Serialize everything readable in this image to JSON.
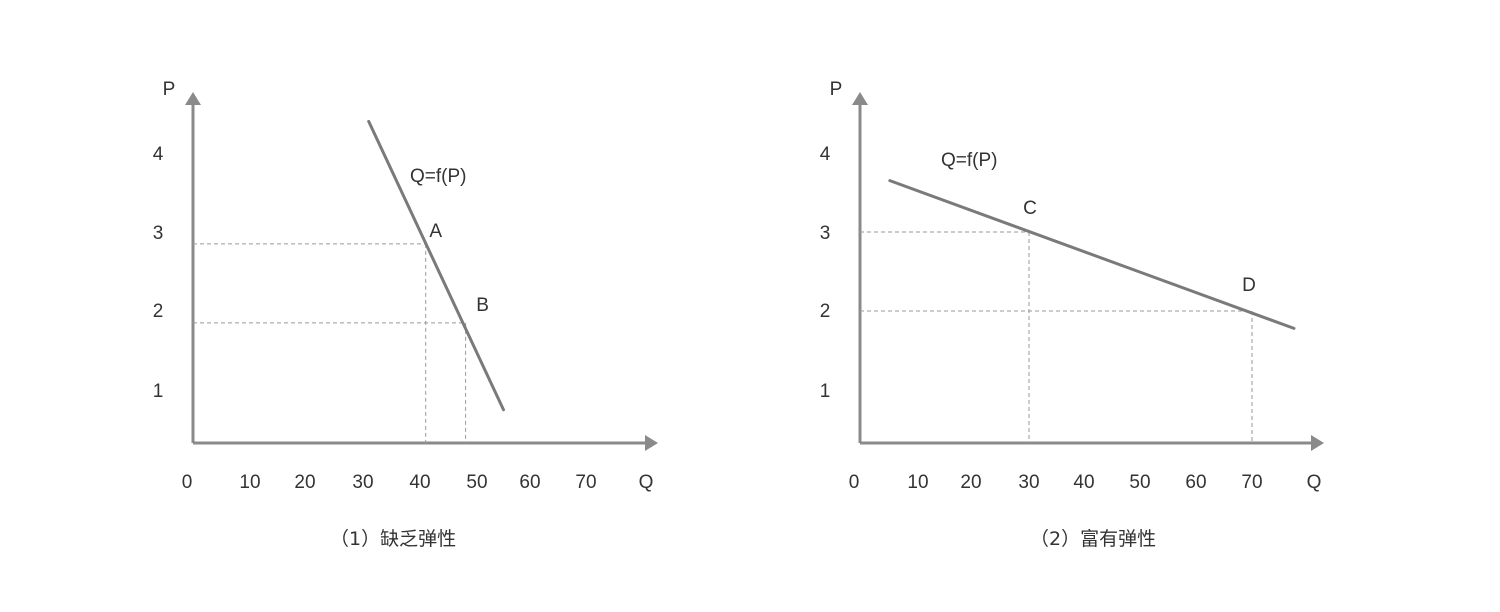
{
  "figure": {
    "captions": [
      "（1）缺乏弹性",
      "（2）富有弹性"
    ]
  },
  "colors": {
    "axis": "#8a8a8a",
    "curve": "#7a7a7a",
    "guide": "#9a9a9a",
    "text": "#333333"
  },
  "chart_data": [
    {
      "type": "line",
      "title": "",
      "xlabel": "Q",
      "ylabel": "P",
      "x_ticks": [
        "0",
        "10",
        "20",
        "30",
        "40",
        "50",
        "60",
        "70"
      ],
      "y_ticks": [
        "1",
        "2",
        "3",
        "4"
      ],
      "xlim": [
        0,
        80
      ],
      "ylim": [
        0.3,
        4.8
      ],
      "curve_label": "Q=f(P)",
      "series": [
        {
          "name": "",
          "points": [
            {
              "x": 31,
              "y": 4.4
            },
            {
              "x": 55,
              "y": 0.75
            }
          ]
        }
      ],
      "annotated_points": [
        {
          "label": "A",
          "x": 41,
          "y": 2.85
        },
        {
          "label": "B",
          "x": 48,
          "y": 1.85
        }
      ],
      "grid": false,
      "caption": "（1）缺乏弹性"
    },
    {
      "type": "line",
      "title": "",
      "xlabel": "Q",
      "ylabel": "P",
      "x_ticks": [
        "0",
        "10",
        "20",
        "30",
        "40",
        "50",
        "60",
        "70"
      ],
      "y_ticks": [
        "1",
        "2",
        "3",
        "4"
      ],
      "xlim": [
        0,
        80
      ],
      "ylim": [
        0.3,
        4.8
      ],
      "curve_label": "Q=f(P)",
      "series": [
        {
          "name": "",
          "points": [
            {
              "x": 5.6,
              "y": 3.65
            },
            {
              "x": 77.5,
              "y": 1.78
            }
          ]
        }
      ],
      "annotated_points": [
        {
          "label": "C",
          "x": 30,
          "y": 3.0
        },
        {
          "label": "D",
          "x": 70,
          "y": 2.0
        }
      ],
      "grid": false,
      "caption": "（2）富有弹性"
    }
  ]
}
